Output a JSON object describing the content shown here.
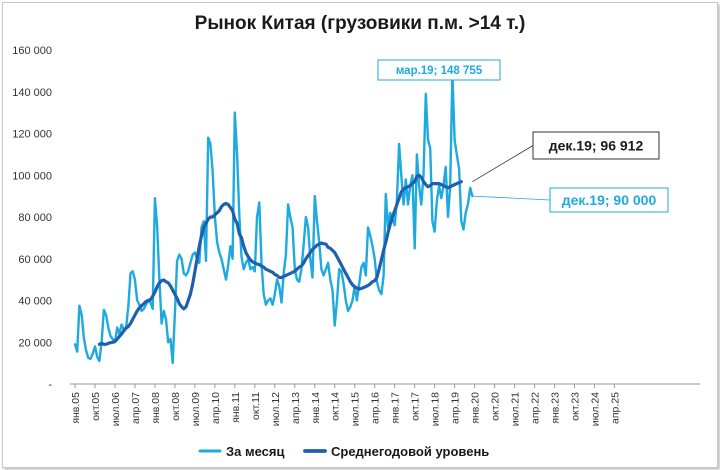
{
  "chart_data": {
    "type": "line",
    "title": "Рынок Китая (грузовики п.м. >14 т.)",
    "xlabel": "",
    "ylabel": "",
    "ylim": [
      0,
      160000
    ],
    "grid": false,
    "legend_position": "bottom",
    "y_ticks": [
      "-",
      "20 000",
      "40 000",
      "60 000",
      "80 000",
      "100 000",
      "120 000",
      "140 000",
      "160 000"
    ],
    "x_ticks": [
      "янв.05",
      "окт.05",
      "июл.06",
      "апр.07",
      "янв.08",
      "окт.08",
      "июл.09",
      "апр.10",
      "янв.11",
      "окт.11",
      "июл.12",
      "апр.13",
      "янв.14",
      "окт.14",
      "июл.15",
      "апр.16",
      "янв.17",
      "окт.17",
      "июл.18",
      "апр.19",
      "янв.20",
      "окт.20",
      "июл.21",
      "апр.22",
      "янв.23",
      "окт.23",
      "июл.24",
      "апр.25"
    ],
    "x_start": "янв.05",
    "x_period": "month",
    "series": [
      {
        "name": "За месяц",
        "color": "#1eaadf",
        "values": [
          19000,
          15500,
          37500,
          33000,
          22000,
          16000,
          12500,
          12000,
          14500,
          18000,
          13000,
          11000,
          20000,
          35500,
          33000,
          27000,
          23000,
          21500,
          20000,
          27000,
          24000,
          28500,
          26000,
          27000,
          37000,
          53000,
          54000,
          50000,
          40000,
          38000,
          35000,
          36000,
          38000,
          40000,
          39000,
          36000,
          89000,
          76000,
          50000,
          29000,
          35000,
          31000,
          20000,
          21500,
          10000,
          34000,
          59000,
          62000,
          60000,
          53000,
          52000,
          54000,
          58000,
          62000,
          63000,
          60000,
          58000,
          75000,
          78000,
          59000,
          118000,
          115000,
          102000,
          80000,
          68000,
          63000,
          60000,
          55000,
          50000,
          57000,
          66000,
          60000,
          130000,
          110000,
          81000,
          61000,
          55000,
          58000,
          60000,
          55000,
          56000,
          54000,
          80000,
          87000,
          58000,
          43000,
          38000,
          40000,
          41000,
          38000,
          43000,
          50000,
          47000,
          39000,
          53000,
          62000,
          86000,
          80000,
          75000,
          55000,
          50000,
          49000,
          55000,
          67000,
          80000,
          75000,
          60000,
          51000,
          90000,
          78000,
          68000,
          55000,
          52000,
          55000,
          58000,
          50000,
          45000,
          28000,
          40000,
          55000,
          54000,
          48000,
          40000,
          35000,
          37000,
          40000,
          47000,
          40000,
          48000,
          56000,
          58000,
          52000,
          75000,
          71000,
          66000,
          60000,
          49000,
          45000,
          43000,
          52000,
          91000,
          75000,
          82000,
          79000,
          76000,
          88000,
          115000,
          100000,
          86000,
          98000,
          86000,
          95000,
          100000,
          65000,
          110000,
          95000,
          86000,
          100000,
          139000,
          117000,
          113000,
          78000,
          73000,
          88000,
          95000,
          89000,
          95000,
          104000,
          80000,
          95000,
          148755,
          117000,
          110000,
          103000,
          78000,
          74000,
          82000,
          86000,
          94000,
          90000
        ]
      },
      {
        "name": "Среднегодовой уровень",
        "color": "#1f5fad",
        "values": [
          null,
          null,
          null,
          null,
          null,
          null,
          null,
          null,
          null,
          null,
          null,
          19000,
          19500,
          19000,
          19000,
          19500,
          19800,
          20000,
          20500,
          21500,
          22800,
          24000,
          25500,
          26800,
          27500,
          29000,
          31000,
          33000,
          35000,
          36500,
          37500,
          38500,
          39500,
          40000,
          40500,
          42000,
          44000,
          46500,
          48500,
          49500,
          49800,
          49000,
          48500,
          47000,
          45000,
          43000,
          41000,
          38500,
          37000,
          36000,
          37000,
          40000,
          43000,
          48000,
          54000,
          60000,
          66000,
          71000,
          75000,
          77000,
          79000,
          80000,
          80000,
          81000,
          82000,
          83000,
          85000,
          86000,
          86500,
          86000,
          84500,
          83000,
          79000,
          77000,
          72000,
          70000,
          66000,
          63000,
          61000,
          59500,
          58500,
          58000,
          57500,
          57200,
          56500,
          56000,
          55000,
          54500,
          54000,
          53500,
          52500,
          52000,
          51000,
          51000,
          51500,
          52000,
          52500,
          53000,
          53500,
          54000,
          55000,
          56000,
          56500,
          58000,
          60000,
          61500,
          63000,
          64500,
          65500,
          66500,
          67000,
          67500,
          67200,
          67000,
          65500,
          65000,
          64000,
          63000,
          61000,
          59000,
          57000,
          55000,
          53000,
          51000,
          49000,
          47500,
          46500,
          46000,
          45500,
          45800,
          46200,
          46700,
          47200,
          48000,
          49000,
          49500,
          51000,
          55000,
          59500,
          64000,
          68000,
          72500,
          76500,
          80000,
          83000,
          86000,
          89000,
          92000,
          93500,
          94000,
          94500,
          95000,
          96000,
          97000,
          99500,
          100000,
          99000,
          97000,
          95500,
          94500,
          95000,
          96000,
          96000,
          96000,
          96000,
          95500,
          95000,
          94500,
          94000,
          94500,
          95000,
          95500,
          96000,
          96500,
          96912
        ]
      }
    ],
    "annotations": [
      {
        "label": "мар.19;  148 755",
        "x": "мар.19",
        "y": 148755,
        "series": "За месяц"
      },
      {
        "label": "дек.19;  96 912",
        "x": "дек.19",
        "y": 96912,
        "series": "Среднегодовой уровень"
      },
      {
        "label": "дек.19;  90 000",
        "x": "дек.19",
        "y": 90000,
        "series": "За месяц"
      }
    ]
  }
}
